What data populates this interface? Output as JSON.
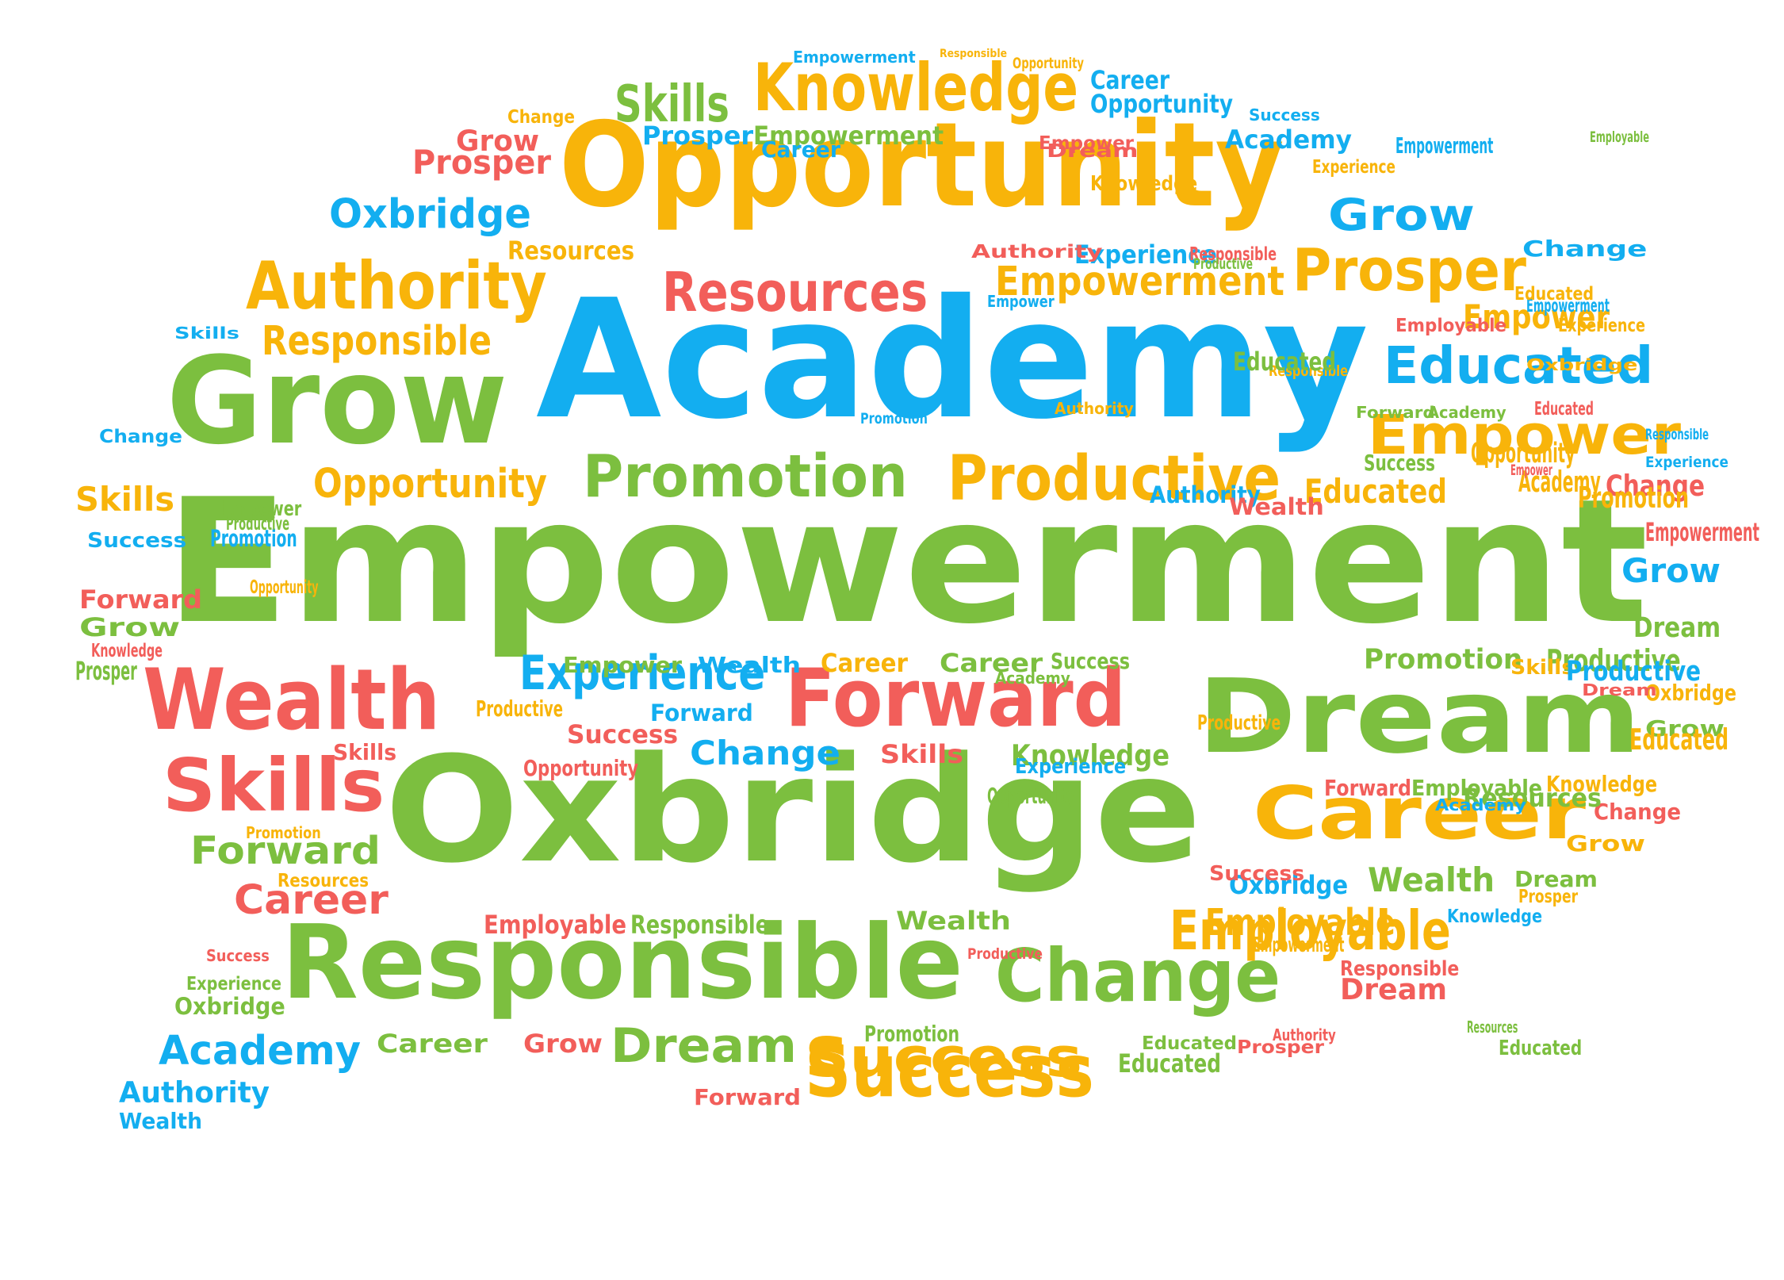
{
  "palette": {
    "green": "#7cbf3f",
    "blue": "#13aef0",
    "orange": "#f8b40a",
    "red": "#f25e5a"
  },
  "words": [
    {
      "text": "Empowerment",
      "color": "green"
    },
    {
      "text": "Academy",
      "color": "blue"
    },
    {
      "text": "Oxbridge",
      "color": "green"
    },
    {
      "text": "Opportunity",
      "color": "orange"
    },
    {
      "text": "Responsible",
      "color": "green"
    },
    {
      "text": "Dream",
      "color": "green"
    },
    {
      "text": "Grow",
      "color": "green"
    },
    {
      "text": "Knowledge",
      "color": "orange"
    },
    {
      "text": "Forward",
      "color": "red"
    },
    {
      "text": "Wealth",
      "color": "red"
    },
    {
      "text": "Career",
      "color": "orange"
    },
    {
      "text": "Change",
      "color": "green"
    },
    {
      "text": "Skills",
      "color": "red"
    },
    {
      "text": "Success",
      "color": "orange"
    },
    {
      "text": "Authority",
      "color": "orange"
    },
    {
      "text": "Productive",
      "color": "orange"
    },
    {
      "text": "Promotion",
      "color": "green"
    },
    {
      "text": "Prosper",
      "color": "orange"
    },
    {
      "text": "Resources",
      "color": "red"
    },
    {
      "text": "Educated",
      "color": "blue"
    },
    {
      "text": "Empower",
      "color": "orange"
    },
    {
      "text": "Employable",
      "color": "orange"
    },
    {
      "text": "Experience",
      "color": "blue"
    },
    {
      "text": "Skills",
      "color": "green"
    },
    {
      "text": "Oxbridge",
      "color": "blue"
    },
    {
      "text": "Grow",
      "color": "blue"
    },
    {
      "text": "Empowerment",
      "color": "orange"
    },
    {
      "text": "Responsible",
      "color": "orange"
    },
    {
      "text": "Opportunity",
      "color": "orange"
    },
    {
      "text": "Prosper",
      "color": "red"
    },
    {
      "text": "Grow",
      "color": "red"
    },
    {
      "text": "Resources",
      "color": "orange"
    },
    {
      "text": "Career",
      "color": "blue"
    },
    {
      "text": "Opportunity",
      "color": "blue"
    },
    {
      "text": "Prosper",
      "color": "blue"
    },
    {
      "text": "Empowerment",
      "color": "green"
    },
    {
      "text": "Academy",
      "color": "blue"
    },
    {
      "text": "Experience",
      "color": "blue"
    },
    {
      "text": "Success",
      "color": "blue"
    },
    {
      "text": "Experience",
      "color": "orange"
    },
    {
      "text": "Empower",
      "color": "red"
    },
    {
      "text": "Change",
      "color": "orange"
    },
    {
      "text": "Empowerment",
      "color": "blue"
    },
    {
      "text": "Responsible",
      "color": "orange"
    },
    {
      "text": "Opportunity",
      "color": "orange"
    },
    {
      "text": "Educated",
      "color": "orange"
    },
    {
      "text": "Empower",
      "color": "orange"
    },
    {
      "text": "Skills",
      "color": "orange"
    },
    {
      "text": "Change",
      "color": "red"
    },
    {
      "text": "Grow",
      "color": "blue"
    },
    {
      "text": "Dream",
      "color": "green"
    },
    {
      "text": "Productive",
      "color": "green"
    },
    {
      "text": "Promotion",
      "color": "green"
    },
    {
      "text": "Oxbridge",
      "color": "orange"
    },
    {
      "text": "Grow",
      "color": "green"
    },
    {
      "text": "Knowledge",
      "color": "green"
    },
    {
      "text": "Knowledge",
      "color": "orange"
    },
    {
      "text": "Change",
      "color": "red"
    },
    {
      "text": "Grow",
      "color": "orange"
    },
    {
      "text": "Forward",
      "color": "red"
    },
    {
      "text": "Employable",
      "color": "green"
    },
    {
      "text": "Oxbridge",
      "color": "blue"
    },
    {
      "text": "Wealth",
      "color": "green"
    },
    {
      "text": "Dream",
      "color": "green"
    },
    {
      "text": "Prosper",
      "color": "orange"
    },
    {
      "text": "Knowledge",
      "color": "blue"
    },
    {
      "text": "Employable",
      "color": "orange"
    },
    {
      "text": "Responsible",
      "color": "red"
    },
    {
      "text": "Dream",
      "color": "red"
    },
    {
      "text": "Prosper",
      "color": "red"
    },
    {
      "text": "Educated",
      "color": "green"
    },
    {
      "text": "Educated",
      "color": "green"
    },
    {
      "text": "Success",
      "color": "orange"
    },
    {
      "text": "Promotion",
      "color": "green"
    },
    {
      "text": "Dream",
      "color": "green"
    },
    {
      "text": "Career",
      "color": "green"
    },
    {
      "text": "Grow",
      "color": "red"
    },
    {
      "text": "Forward",
      "color": "red"
    },
    {
      "text": "Academy",
      "color": "blue"
    },
    {
      "text": "Authority",
      "color": "blue"
    },
    {
      "text": "Wealth",
      "color": "blue"
    },
    {
      "text": "Oxbridge",
      "color": "green"
    },
    {
      "text": "Experience",
      "color": "green"
    },
    {
      "text": "Success",
      "color": "red"
    },
    {
      "text": "Career",
      "color": "red"
    },
    {
      "text": "Resources",
      "color": "orange"
    },
    {
      "text": "Forward",
      "color": "green"
    },
    {
      "text": "Promotion",
      "color": "orange"
    },
    {
      "text": "Skills",
      "color": "red"
    },
    {
      "text": "Employable",
      "color": "red"
    },
    {
      "text": "Responsible",
      "color": "green"
    },
    {
      "text": "Wealth",
      "color": "green"
    },
    {
      "text": "Change",
      "color": "blue"
    },
    {
      "text": "Skills",
      "color": "red"
    },
    {
      "text": "Opportunity",
      "color": "red"
    },
    {
      "text": "Success",
      "color": "red"
    },
    {
      "text": "Forward",
      "color": "blue"
    },
    {
      "text": "Experience",
      "color": "blue"
    },
    {
      "text": "Productive",
      "color": "orange"
    },
    {
      "text": "Career",
      "color": "orange"
    },
    {
      "text": "Career",
      "color": "green"
    },
    {
      "text": "Success",
      "color": "green"
    },
    {
      "text": "Empower",
      "color": "green"
    },
    {
      "text": "Wealth",
      "color": "blue"
    },
    {
      "text": "Skills",
      "color": "orange"
    },
    {
      "text": "Productive",
      "color": "blue"
    },
    {
      "text": "Promotion",
      "color": "blue"
    },
    {
      "text": "Empower",
      "color": "green"
    },
    {
      "text": "Authority",
      "color": "blue"
    },
    {
      "text": "Success",
      "color": "blue"
    },
    {
      "text": "Forward",
      "color": "red"
    },
    {
      "text": "Grow",
      "color": "green"
    },
    {
      "text": "Knowledge",
      "color": "red"
    },
    {
      "text": "Prosper",
      "color": "green"
    },
    {
      "text": "Skills",
      "color": "blue"
    },
    {
      "text": "Change",
      "color": "blue"
    },
    {
      "text": "Opportunity",
      "color": "orange"
    },
    {
      "text": "Productive",
      "color": "green"
    },
    {
      "text": "Academy",
      "color": "green"
    },
    {
      "text": "Resources",
      "color": "green"
    },
    {
      "text": "Educated",
      "color": "orange"
    },
    {
      "text": "Responsible",
      "color": "blue"
    },
    {
      "text": "Experience",
      "color": "blue"
    },
    {
      "text": "Promotion",
      "color": "blue"
    },
    {
      "text": "Authority",
      "color": "orange"
    },
    {
      "text": "Academy",
      "color": "green"
    },
    {
      "text": "Educated",
      "color": "red"
    },
    {
      "text": "Forward",
      "color": "green"
    },
    {
      "text": "Career",
      "color": "blue"
    },
    {
      "text": "Dream",
      "color": "red"
    },
    {
      "text": "Knowledge",
      "color": "orange"
    },
    {
      "text": "Employable",
      "color": "green"
    },
    {
      "text": "Empowerment",
      "color": "blue"
    },
    {
      "text": "Authority",
      "color": "red"
    },
    {
      "text": "Responsible",
      "color": "red"
    },
    {
      "text": "Productive",
      "color": "green"
    },
    {
      "text": "Empower",
      "color": "blue"
    },
    {
      "text": "Empowerment",
      "color": "blue"
    },
    {
      "text": "Experience",
      "color": "orange"
    },
    {
      "text": "Educated",
      "color": "orange"
    },
    {
      "text": "Responsible",
      "color": "orange"
    },
    {
      "text": "Educated",
      "color": "green"
    },
    {
      "text": "Change",
      "color": "blue"
    },
    {
      "text": "Employable",
      "color": "red"
    },
    {
      "text": "Wealth",
      "color": "red"
    },
    {
      "text": "Success",
      "color": "green"
    },
    {
      "text": "Opportunity",
      "color": "orange"
    },
    {
      "text": "Academy",
      "color": "orange"
    },
    {
      "text": "Empower",
      "color": "red"
    },
    {
      "text": "Promotion",
      "color": "orange"
    },
    {
      "text": "Empowerment",
      "color": "red"
    },
    {
      "text": "Oxbridge",
      "color": "orange"
    },
    {
      "text": "Resources",
      "color": "green"
    },
    {
      "text": "Academy",
      "color": "blue"
    },
    {
      "text": "Educated",
      "color": "green"
    },
    {
      "text": "Dream",
      "color": "red"
    },
    {
      "text": "Productive",
      "color": "orange"
    },
    {
      "text": "Opportunity",
      "color": "green"
    },
    {
      "text": "Empowerment",
      "color": "orange"
    },
    {
      "text": "Authority",
      "color": "red"
    },
    {
      "text": "Productive",
      "color": "red"
    },
    {
      "text": "Success",
      "color": "red"
    }
  ]
}
